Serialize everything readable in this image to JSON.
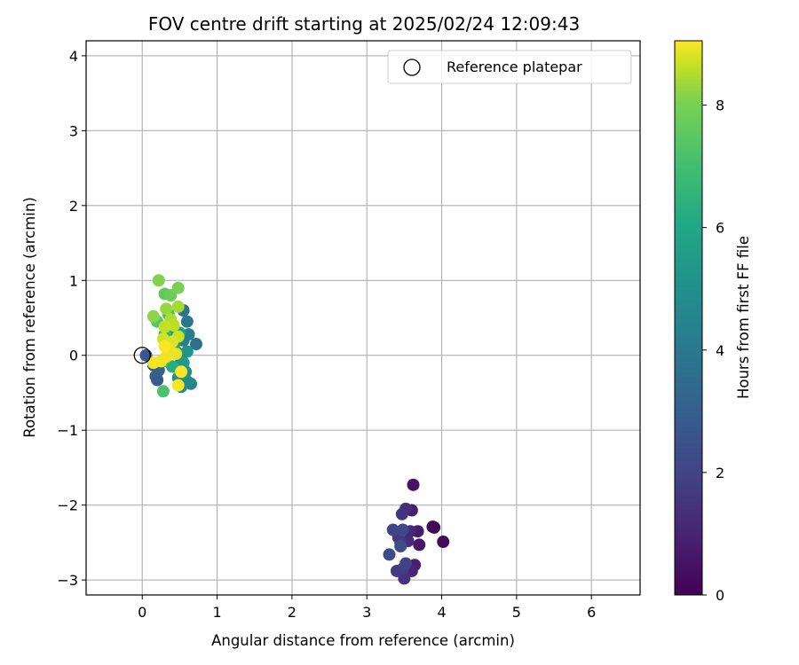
{
  "chart_data": {
    "type": "scatter",
    "title": "FOV centre drift starting at 2025/02/24 12:09:43",
    "xlabel": "Angular distance from reference (arcmin)",
    "ylabel": "Rotation from reference (arcmin)",
    "xlim": [
      -0.75,
      6.65
    ],
    "ylim": [
      -3.2,
      4.2
    ],
    "xticks": [
      0,
      1,
      2,
      3,
      4,
      5,
      6
    ],
    "yticks": [
      -3,
      -2,
      -1,
      0,
      1,
      2,
      3,
      4
    ],
    "xtick_labels": [
      "0",
      "1",
      "2",
      "3",
      "4",
      "5",
      "6"
    ],
    "ytick_labels": [
      "−3",
      "−2",
      "−1",
      "0",
      "1",
      "2",
      "3",
      "4"
    ],
    "grid": true,
    "legend": {
      "placement": "top-right",
      "entries": [
        {
          "label": "Reference platepar",
          "marker": "open-circle"
        }
      ]
    },
    "reference_point": {
      "x": 0,
      "y": 0
    },
    "colorbar": {
      "label": "Hours from first FF file",
      "colormap": "viridis",
      "range": [
        0,
        9.05
      ],
      "ticks": [
        0,
        2,
        4,
        6,
        8
      ],
      "tick_labels": [
        "0",
        "2",
        "4",
        "6",
        "8"
      ]
    },
    "points": [
      {
        "x": 3.88,
        "y": -2.29,
        "c": 0.0
      },
      {
        "x": 3.9,
        "y": -2.3,
        "c": 0.1
      },
      {
        "x": 4.02,
        "y": -2.49,
        "c": 0.25
      },
      {
        "x": 3.62,
        "y": -1.73,
        "c": 0.5
      },
      {
        "x": 3.7,
        "y": -2.53,
        "c": 0.6
      },
      {
        "x": 3.68,
        "y": -2.35,
        "c": 0.7
      },
      {
        "x": 3.6,
        "y": -2.07,
        "c": 0.8
      },
      {
        "x": 3.64,
        "y": -2.8,
        "c": 0.9
      },
      {
        "x": 3.6,
        "y": -2.88,
        "c": 1.0
      },
      {
        "x": 3.58,
        "y": -2.35,
        "c": 1.1
      },
      {
        "x": 3.55,
        "y": -2.48,
        "c": 1.2
      },
      {
        "x": 3.52,
        "y": -2.05,
        "c": 1.3
      },
      {
        "x": 3.5,
        "y": -2.98,
        "c": 1.4
      },
      {
        "x": 3.47,
        "y": -2.12,
        "c": 1.5
      },
      {
        "x": 3.45,
        "y": -2.5,
        "c": 1.6
      },
      {
        "x": 3.42,
        "y": -2.43,
        "c": 1.7
      },
      {
        "x": 3.4,
        "y": -2.88,
        "c": 1.75
      },
      {
        "x": 3.48,
        "y": -2.85,
        "c": 1.8
      },
      {
        "x": 3.52,
        "y": -2.78,
        "c": 1.9
      },
      {
        "x": 3.35,
        "y": -2.33,
        "c": 2.0
      },
      {
        "x": 3.48,
        "y": -2.33,
        "c": 2.1
      },
      {
        "x": 3.3,
        "y": -2.66,
        "c": 2.3
      },
      {
        "x": 3.45,
        "y": -2.55,
        "c": 2.4
      },
      {
        "x": 0.05,
        "y": 0.0,
        "c": 2.6
      },
      {
        "x": 0.15,
        "y": -0.13,
        "c": 2.7
      },
      {
        "x": 0.2,
        "y": -0.33,
        "c": 2.8
      },
      {
        "x": 0.18,
        "y": -0.28,
        "c": 2.9
      },
      {
        "x": 0.22,
        "y": -0.2,
        "c": 3.0
      },
      {
        "x": 0.3,
        "y": -0.05,
        "c": 3.2
      },
      {
        "x": 0.38,
        "y": 0.1,
        "c": 3.4
      },
      {
        "x": 0.72,
        "y": 0.15,
        "c": 3.6
      },
      {
        "x": 0.55,
        "y": 0.6,
        "c": 3.8
      },
      {
        "x": 0.6,
        "y": 0.45,
        "c": 4.0
      },
      {
        "x": 0.62,
        "y": 0.28,
        "c": 4.2
      },
      {
        "x": 0.55,
        "y": 0.2,
        "c": 4.3
      },
      {
        "x": 0.45,
        "y": 0.05,
        "c": 4.4
      },
      {
        "x": 0.52,
        "y": -0.05,
        "c": 4.5
      },
      {
        "x": 0.65,
        "y": -0.38,
        "c": 4.6
      },
      {
        "x": 0.6,
        "y": -0.35,
        "c": 4.7
      },
      {
        "x": 0.52,
        "y": -0.42,
        "c": 4.8
      },
      {
        "x": 0.48,
        "y": -0.3,
        "c": 4.9
      },
      {
        "x": 0.58,
        "y": -0.22,
        "c": 5.0
      },
      {
        "x": 0.6,
        "y": 0.05,
        "c": 5.2
      },
      {
        "x": 0.55,
        "y": -0.1,
        "c": 5.4
      },
      {
        "x": 0.5,
        "y": 0.3,
        "c": 5.6
      },
      {
        "x": 0.42,
        "y": 0.12,
        "c": 5.8
      },
      {
        "x": 0.38,
        "y": 0.35,
        "c": 6.0
      },
      {
        "x": 0.4,
        "y": -0.15,
        "c": 6.2
      },
      {
        "x": 0.35,
        "y": 0.2,
        "c": 6.4
      },
      {
        "x": 0.3,
        "y": 0.28,
        "c": 6.6
      },
      {
        "x": 0.28,
        "y": -0.08,
        "c": 6.8
      },
      {
        "x": 0.35,
        "y": 0.55,
        "c": 7.0
      },
      {
        "x": 0.28,
        "y": -0.48,
        "c": 7.2
      },
      {
        "x": 0.2,
        "y": 0.45,
        "c": 7.4
      },
      {
        "x": 0.3,
        "y": 0.82,
        "c": 7.6
      },
      {
        "x": 0.38,
        "y": 0.8,
        "c": 7.8
      },
      {
        "x": 0.48,
        "y": 0.9,
        "c": 8.0
      },
      {
        "x": 0.22,
        "y": 1.0,
        "c": 8.1
      },
      {
        "x": 0.15,
        "y": 0.52,
        "c": 8.2
      },
      {
        "x": 0.32,
        "y": 0.62,
        "c": 8.3
      },
      {
        "x": 0.48,
        "y": 0.65,
        "c": 8.4
      },
      {
        "x": 0.38,
        "y": 0.48,
        "c": 8.5
      },
      {
        "x": 0.42,
        "y": 0.4,
        "c": 8.6
      },
      {
        "x": 0.3,
        "y": 0.38,
        "c": 8.65
      },
      {
        "x": 0.48,
        "y": 0.25,
        "c": 8.7
      },
      {
        "x": 0.28,
        "y": 0.22,
        "c": 8.75
      },
      {
        "x": 0.4,
        "y": 0.18,
        "c": 8.8
      },
      {
        "x": 0.38,
        "y": 0.05,
        "c": 8.85
      },
      {
        "x": 0.45,
        "y": 0.02,
        "c": 8.9
      },
      {
        "x": 0.32,
        "y": -0.02,
        "c": 8.92
      },
      {
        "x": 0.25,
        "y": -0.08,
        "c": 8.95
      },
      {
        "x": 0.15,
        "y": -0.1,
        "c": 8.98
      },
      {
        "x": 0.52,
        "y": -0.22,
        "c": 9.0
      },
      {
        "x": 0.48,
        "y": -0.4,
        "c": 9.0
      },
      {
        "x": 0.3,
        "y": 0.12,
        "c": 9.02
      }
    ]
  }
}
